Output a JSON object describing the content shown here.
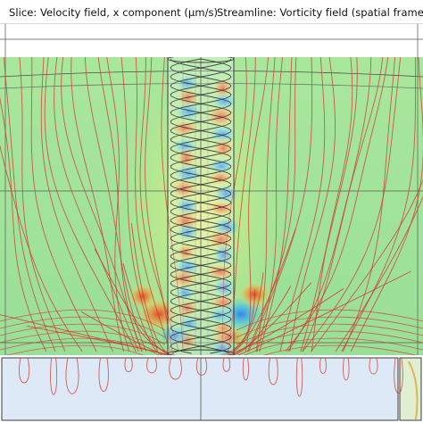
{
  "title": {
    "slice": "Slice: Velocity field, x component (μm/s)",
    "streamline": "Streamline: Vorticity field (spatial frame)"
  },
  "colors": {
    "field_background": "#9fe39a",
    "streamlines": "#d03a2e",
    "frame_lines": "#3b3b3b",
    "lower_block": "#dde9f7",
    "warm_accent": "#e8432a",
    "cool_accent": "#2d7ff0"
  }
}
